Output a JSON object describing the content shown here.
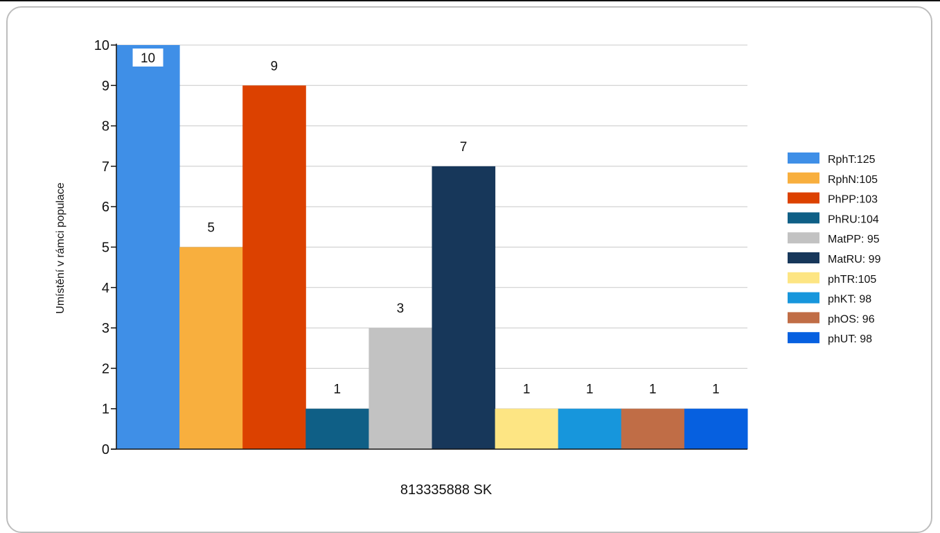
{
  "chart_data": {
    "type": "bar",
    "xlabel": "813335888 SK",
    "ylabel": "Umístění v rámci populace",
    "ylim": [
      0,
      10
    ],
    "yticks": [
      0,
      1,
      2,
      3,
      4,
      5,
      6,
      7,
      8,
      9,
      10
    ],
    "grid": true,
    "legend_position": "right",
    "series": [
      {
        "name": "RphT:125",
        "value": 10,
        "color": "#3f8fe7"
      },
      {
        "name": "RphN:105",
        "value": 5,
        "color": "#f8af3e"
      },
      {
        "name": "PhPP:103",
        "value": 9,
        "color": "#dc4100"
      },
      {
        "name": "PhRU:104",
        "value": 1,
        "color": "#0f5f86"
      },
      {
        "name": "MatPP: 95",
        "value": 3,
        "color": "#c2c2c2"
      },
      {
        "name": "MatRU: 99",
        "value": 7,
        "color": "#17375a"
      },
      {
        "name": "phTR:105",
        "value": 1,
        "color": "#fde583"
      },
      {
        "name": "phKT: 98",
        "value": 1,
        "color": "#1796dc"
      },
      {
        "name": "phOS: 96",
        "value": 1,
        "color": "#c06d46"
      },
      {
        "name": "phUT: 98",
        "value": 1,
        "color": "#0660e0"
      }
    ]
  }
}
